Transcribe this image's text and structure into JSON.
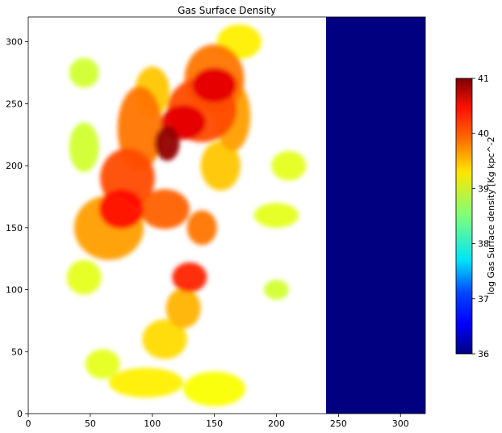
{
  "chart_data": {
    "type": "heatmap",
    "title": "Gas Surface Density",
    "xlabel": "",
    "ylabel": "",
    "xlim": [
      0,
      320
    ],
    "ylim": [
      0,
      320
    ],
    "xticks": [
      0,
      50,
      100,
      150,
      200,
      250,
      300
    ],
    "yticks": [
      0,
      50,
      100,
      150,
      200,
      250,
      300
    ],
    "grid": false,
    "colormap": "jet",
    "colorbar": {
      "label": "log Gas Surface density [Kg kpc^-2",
      "range": [
        36,
        41
      ],
      "ticks": [
        36,
        37,
        38,
        39,
        40,
        41
      ]
    },
    "regions": [
      {
        "name": "masked-uniform-band",
        "x_range": [
          240,
          320
        ],
        "y_range": [
          0,
          320
        ],
        "value": 36
      },
      {
        "name": "central-ring-peak",
        "center": [
          112,
          215
        ],
        "value": 41
      }
    ],
    "blobs": [
      {
        "x": 112,
        "y": 218,
        "rx": 10,
        "ry": 14,
        "value": 40.9
      },
      {
        "x": 125,
        "y": 235,
        "rx": 18,
        "ry": 14,
        "value": 40.5
      },
      {
        "x": 150,
        "y": 265,
        "rx": 18,
        "ry": 14,
        "value": 40.5
      },
      {
        "x": 140,
        "y": 245,
        "rx": 28,
        "ry": 26,
        "value": 40.0
      },
      {
        "x": 150,
        "y": 270,
        "rx": 24,
        "ry": 28,
        "value": 39.8
      },
      {
        "x": 165,
        "y": 240,
        "rx": 14,
        "ry": 28,
        "value": 39.6
      },
      {
        "x": 155,
        "y": 200,
        "rx": 16,
        "ry": 20,
        "value": 39.4
      },
      {
        "x": 75,
        "y": 165,
        "rx": 18,
        "ry": 16,
        "value": 40.3
      },
      {
        "x": 80,
        "y": 190,
        "rx": 22,
        "ry": 24,
        "value": 40.0
      },
      {
        "x": 90,
        "y": 230,
        "rx": 18,
        "ry": 34,
        "value": 39.8
      },
      {
        "x": 65,
        "y": 150,
        "rx": 28,
        "ry": 26,
        "value": 39.6
      },
      {
        "x": 110,
        "y": 165,
        "rx": 20,
        "ry": 16,
        "value": 39.9
      },
      {
        "x": 100,
        "y": 260,
        "rx": 14,
        "ry": 20,
        "value": 39.4
      },
      {
        "x": 130,
        "y": 110,
        "rx": 14,
        "ry": 12,
        "value": 40.2
      },
      {
        "x": 140,
        "y": 150,
        "rx": 12,
        "ry": 14,
        "value": 39.8
      },
      {
        "x": 125,
        "y": 85,
        "rx": 14,
        "ry": 16,
        "value": 39.5
      },
      {
        "x": 110,
        "y": 60,
        "rx": 18,
        "ry": 16,
        "value": 39.3
      },
      {
        "x": 95,
        "y": 25,
        "rx": 30,
        "ry": 12,
        "value": 39.2
      },
      {
        "x": 150,
        "y": 20,
        "rx": 25,
        "ry": 14,
        "value": 39.1
      },
      {
        "x": 60,
        "y": 40,
        "rx": 14,
        "ry": 12,
        "value": 39.0
      },
      {
        "x": 45,
        "y": 110,
        "rx": 14,
        "ry": 14,
        "value": 39.0
      },
      {
        "x": 45,
        "y": 215,
        "rx": 12,
        "ry": 20,
        "value": 38.9
      },
      {
        "x": 45,
        "y": 275,
        "rx": 12,
        "ry": 12,
        "value": 38.9
      },
      {
        "x": 210,
        "y": 200,
        "rx": 14,
        "ry": 12,
        "value": 39.0
      },
      {
        "x": 200,
        "y": 160,
        "rx": 18,
        "ry": 10,
        "value": 39.0
      },
      {
        "x": 200,
        "y": 100,
        "rx": 10,
        "ry": 8,
        "value": 38.9
      },
      {
        "x": 170,
        "y": 300,
        "rx": 18,
        "ry": 14,
        "value": 39.2
      }
    ]
  }
}
